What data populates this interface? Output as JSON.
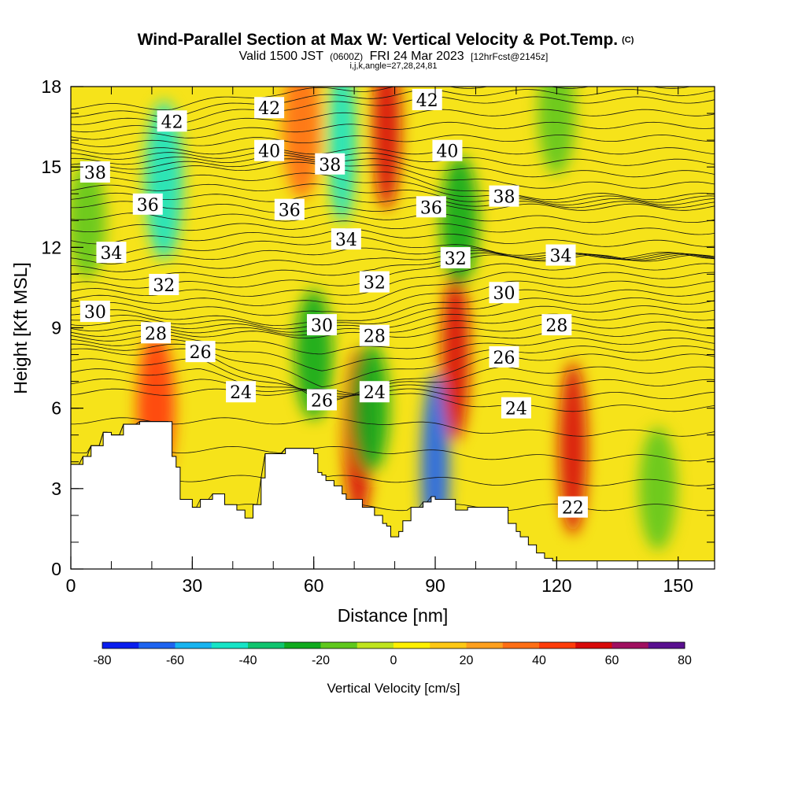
{
  "chart_data": {
    "type": "heatmap",
    "title": "Wind-Parallel Section at Max W: Vertical Velocity & Pot.Temp.",
    "title_suffix": "(C)",
    "subtitle_parts": [
      "Valid 1500 JST",
      "(0600Z)",
      "FRI 24 Mar 2023",
      "[12hrFcst@2145z]"
    ],
    "subtitle2": "i,j,k,angle=27,28,24,81",
    "xlabel": "Distance [nm]",
    "ylabel": "Height [Kft MSL]",
    "xlim": [
      0,
      159
    ],
    "ylim": [
      0,
      18
    ],
    "x_ticks": [
      "0",
      "30",
      "60",
      "90",
      "120",
      "150"
    ],
    "y_ticks": [
      "0",
      "3",
      "6",
      "9",
      "12",
      "15",
      "18"
    ],
    "colorbar": {
      "label": "Vertical Velocity [cm/s]",
      "tick_labels": [
        "-80",
        "-60",
        "-40",
        "-20",
        "0",
        "20",
        "40",
        "60",
        "80"
      ],
      "boundaries": [
        -80,
        -70,
        -60,
        -50,
        -40,
        -30,
        -20,
        -10,
        0,
        10,
        20,
        30,
        40,
        50,
        60,
        70,
        80
      ],
      "colors": [
        "#0a1eee",
        "#1e64f0",
        "#17b4f0",
        "#16e4c6",
        "#10c46e",
        "#10aa1e",
        "#5fc81c",
        "#bfe41e",
        "#fff000",
        "#ffc814",
        "#ffa01e",
        "#ff6e14",
        "#ff3c0a",
        "#d80a0a",
        "#a01060",
        "#5a1090"
      ]
    },
    "terrain_profile": {
      "x": [
        0,
        3,
        5,
        8,
        10,
        13,
        15,
        17,
        23,
        25,
        26,
        27,
        29,
        30,
        32,
        35,
        38,
        41,
        43,
        45,
        47,
        48,
        52,
        53,
        58,
        60,
        61,
        62,
        63,
        65,
        67,
        68,
        72,
        73,
        75,
        77,
        78,
        79,
        80,
        81,
        82,
        84,
        87,
        88,
        89,
        90,
        92,
        95,
        98,
        105,
        108,
        110,
        111,
        113,
        115,
        117,
        119,
        120,
        121,
        123,
        159
      ],
      "height": [
        3.9,
        4.2,
        4.6,
        5.1,
        5.0,
        5.4,
        5.4,
        5.5,
        5.5,
        4.2,
        3.8,
        2.6,
        2.6,
        2.3,
        2.6,
        2.8,
        2.4,
        2.2,
        1.9,
        2.4,
        3.4,
        4.3,
        4.3,
        4.5,
        4.5,
        4.3,
        3.6,
        3.5,
        3.3,
        3.1,
        2.8,
        2.6,
        2.3,
        2.3,
        2.0,
        1.7,
        1.6,
        1.2,
        1.2,
        1.4,
        1.8,
        2.3,
        2.5,
        2.5,
        2.7,
        2.6,
        2.6,
        2.2,
        2.3,
        2.3,
        1.7,
        1.4,
        1.2,
        0.9,
        0.6,
        0.4,
        0.3,
        0.3,
        0.3,
        0.3,
        0.3
      ]
    },
    "w_features": [
      {
        "x": 23,
        "y": 14.5,
        "w": -45
      },
      {
        "x": 21,
        "y": 6.0,
        "w": 40
      },
      {
        "x": 57,
        "y": 16.5,
        "w": 35
      },
      {
        "x": 67,
        "y": 16.0,
        "w": -50
      },
      {
        "x": 78,
        "y": 16.5,
        "w": 50
      },
      {
        "x": 71,
        "y": 5.0,
        "w": 55
      },
      {
        "x": 74,
        "y": 6.0,
        "w": -25
      },
      {
        "x": 90,
        "y": 3.7,
        "w": -70
      },
      {
        "x": 95,
        "y": 8.0,
        "w": 55
      },
      {
        "x": 124,
        "y": 4.5,
        "w": 55
      },
      {
        "x": 145,
        "y": 3.0,
        "w": -20
      },
      {
        "x": 96,
        "y": 13.0,
        "w": -25
      },
      {
        "x": 60,
        "y": 8.0,
        "w": -25
      },
      {
        "x": 4,
        "y": 13.0,
        "w": -15
      },
      {
        "x": 120,
        "y": 17.0,
        "w": -20
      }
    ],
    "theta_labels": [
      {
        "text": "42",
        "x": 25,
        "y": 16.7
      },
      {
        "text": "42",
        "x": 49,
        "y": 17.2
      },
      {
        "text": "42",
        "x": 88,
        "y": 17.5
      },
      {
        "text": "40",
        "x": 49,
        "y": 15.6
      },
      {
        "text": "40",
        "x": 93,
        "y": 15.6
      },
      {
        "text": "38",
        "x": 6,
        "y": 14.8
      },
      {
        "text": "38",
        "x": 64,
        "y": 15.1
      },
      {
        "text": "38",
        "x": 107,
        "y": 13.9
      },
      {
        "text": "36",
        "x": 19,
        "y": 13.6
      },
      {
        "text": "36",
        "x": 54,
        "y": 13.4
      },
      {
        "text": "36",
        "x": 89,
        "y": 13.5
      },
      {
        "text": "34",
        "x": 10,
        "y": 11.8
      },
      {
        "text": "34",
        "x": 68,
        "y": 12.3
      },
      {
        "text": "34",
        "x": 121,
        "y": 11.7
      },
      {
        "text": "32",
        "x": 23,
        "y": 10.6
      },
      {
        "text": "32",
        "x": 75,
        "y": 10.7
      },
      {
        "text": "32",
        "x": 95,
        "y": 11.6
      },
      {
        "text": "30",
        "x": 6,
        "y": 9.6
      },
      {
        "text": "30",
        "x": 62,
        "y": 9.1
      },
      {
        "text": "30",
        "x": 107,
        "y": 10.3
      },
      {
        "text": "28",
        "x": 21,
        "y": 8.8
      },
      {
        "text": "28",
        "x": 75,
        "y": 8.7
      },
      {
        "text": "28",
        "x": 120,
        "y": 9.1
      },
      {
        "text": "26",
        "x": 32,
        "y": 8.1
      },
      {
        "text": "26",
        "x": 62,
        "y": 6.3
      },
      {
        "text": "26",
        "x": 107,
        "y": 7.9
      },
      {
        "text": "24",
        "x": 42,
        "y": 6.6
      },
      {
        "text": "24",
        "x": 75,
        "y": 6.6
      },
      {
        "text": "24",
        "x": 110,
        "y": 6.0
      },
      {
        "text": "22",
        "x": 124,
        "y": 2.3
      }
    ]
  }
}
